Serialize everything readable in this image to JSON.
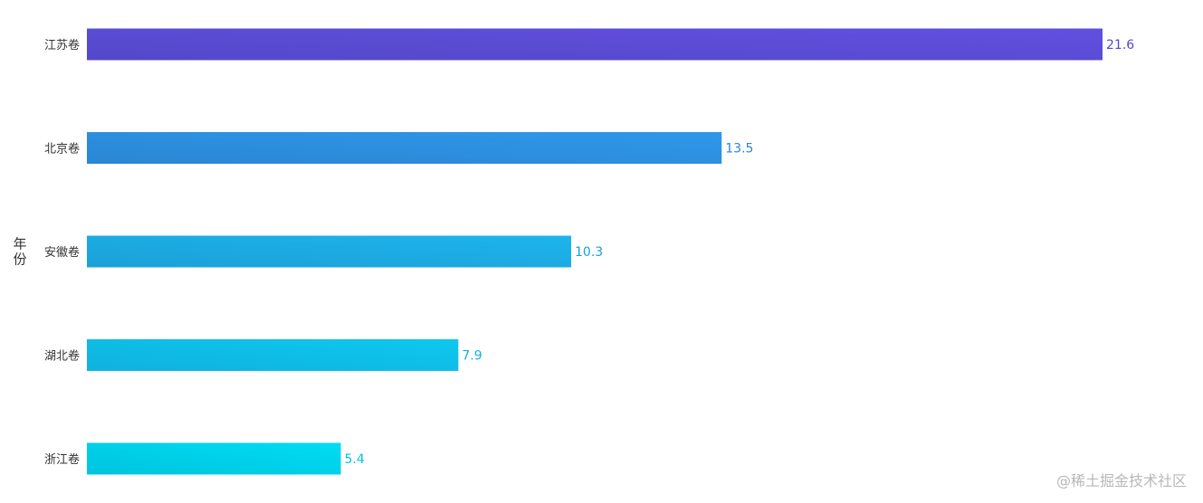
{
  "chart_data": {
    "type": "bar",
    "orientation": "horizontal",
    "ylabel": "年份",
    "categories": [
      "江苏卷",
      "北京卷",
      "安徽卷",
      "湖北卷",
      "浙江卷"
    ],
    "values": [
      21.6,
      13.5,
      10.3,
      7.9,
      5.4
    ],
    "bar_gradients": [
      [
        "#5448c9",
        "#624fe0"
      ],
      [
        "#2a86d4",
        "#2f98ea"
      ],
      [
        "#1ba0d8",
        "#1db5ec"
      ],
      [
        "#0fb2de",
        "#0ec8ef"
      ],
      [
        "#00c4de",
        "#00dcf4"
      ]
    ],
    "label_colors": [
      "#5448c9",
      "#2a86d4",
      "#1ba0d8",
      "#0fb2de",
      "#00c4de"
    ],
    "xlim": [
      0,
      21.6
    ],
    "grid": false
  },
  "watermark": "@稀土掘金技术社区"
}
